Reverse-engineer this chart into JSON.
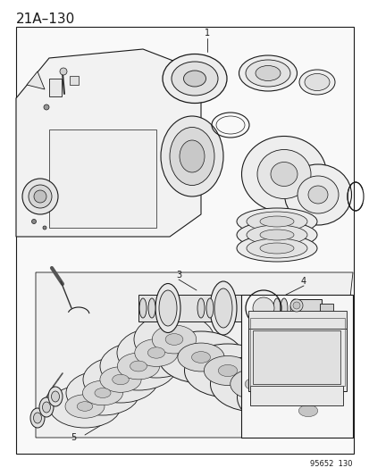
{
  "title": "21A–130",
  "diagram_code": "95652  130",
  "bg": "#ffffff",
  "lc": "#1a1a1a",
  "fig_width": 4.14,
  "fig_height": 5.33,
  "dpi": 100
}
